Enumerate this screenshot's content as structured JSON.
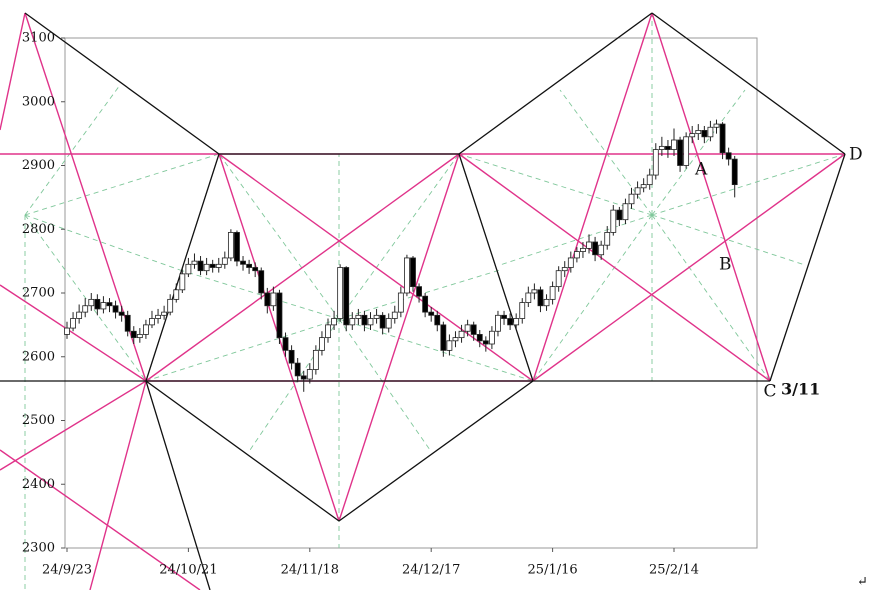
{
  "chart_data": {
    "type": "candlestick",
    "categories": [
      "24/9/23",
      null,
      null,
      null,
      null,
      null,
      null,
      null,
      null,
      null,
      null,
      null,
      null,
      null,
      null,
      null,
      null,
      null,
      null,
      null,
      "24/10/21",
      null,
      null,
      null,
      null,
      null,
      null,
      null,
      null,
      null,
      null,
      null,
      null,
      null,
      null,
      null,
      null,
      null,
      null,
      null,
      "24/11/18",
      null,
      null,
      null,
      null,
      null,
      null,
      null,
      null,
      null,
      null,
      null,
      null,
      null,
      null,
      null,
      null,
      null,
      null,
      null,
      "24/12/17",
      null,
      null,
      null,
      null,
      null,
      null,
      null,
      null,
      null,
      null,
      null,
      null,
      null,
      null,
      null,
      null,
      null,
      null,
      null,
      "25/1/16",
      null,
      null,
      null,
      null,
      null,
      null,
      null,
      null,
      null,
      null,
      null,
      null,
      null,
      null,
      null,
      null,
      null,
      null,
      null,
      "25/2/14",
      null,
      null,
      null,
      null,
      null,
      null,
      null,
      null,
      null,
      null
    ],
    "open": [
      2635,
      2645,
      2660,
      2670,
      2680,
      2690,
      2675,
      2685,
      2680,
      2670,
      2665,
      2640,
      2630,
      2635,
      2650,
      2660,
      2665,
      2670,
      2690,
      2705,
      2730,
      2745,
      2750,
      2735,
      2745,
      2740,
      2745,
      2755,
      2795,
      2750,
      2745,
      2740,
      2735,
      2700,
      2680,
      2700,
      2630,
      2610,
      2590,
      2570,
      2565,
      2580,
      2610,
      2630,
      2650,
      2660,
      2740,
      2650,
      2660,
      2665,
      2650,
      2660,
      2665,
      2645,
      2660,
      2670,
      2700,
      2755,
      2710,
      2695,
      2670,
      2665,
      2650,
      2610,
      2625,
      2630,
      2640,
      2650,
      2635,
      2625,
      2620,
      2640,
      2665,
      2660,
      2650,
      2660,
      2685,
      2700,
      2705,
      2680,
      2690,
      2710,
      2735,
      2740,
      2755,
      2765,
      2770,
      2780,
      2760,
      2775,
      2795,
      2830,
      2815,
      2840,
      2855,
      2865,
      2870,
      2885,
      2925,
      2930,
      2925,
      2940,
      2900,
      2945,
      2950,
      2955,
      2945,
      2960,
      2965,
      2920,
      2910
    ],
    "high": [
      2655,
      2670,
      2682,
      2692,
      2700,
      2698,
      2695,
      2692,
      2688,
      2680,
      2672,
      2648,
      2645,
      2658,
      2672,
      2675,
      2680,
      2698,
      2715,
      2740,
      2755,
      2762,
      2758,
      2755,
      2752,
      2755,
      2765,
      2800,
      2798,
      2758,
      2752,
      2748,
      2740,
      2708,
      2710,
      2705,
      2638,
      2618,
      2598,
      2578,
      2590,
      2618,
      2640,
      2660,
      2672,
      2745,
      2742,
      2670,
      2675,
      2672,
      2670,
      2675,
      2670,
      2668,
      2680,
      2710,
      2760,
      2758,
      2715,
      2700,
      2678,
      2672,
      2655,
      2635,
      2640,
      2650,
      2658,
      2655,
      2642,
      2632,
      2648,
      2672,
      2672,
      2668,
      2668,
      2692,
      2710,
      2715,
      2710,
      2698,
      2718,
      2742,
      2750,
      2765,
      2772,
      2780,
      2792,
      2788,
      2782,
      2805,
      2838,
      2835,
      2848,
      2865,
      2875,
      2880,
      2895,
      2935,
      2945,
      2940,
      2958,
      2945,
      2952,
      2962,
      2965,
      2962,
      2970,
      2972,
      2968,
      2928,
      2915
    ],
    "low": [
      2628,
      2640,
      2652,
      2662,
      2672,
      2665,
      2668,
      2670,
      2660,
      2655,
      2632,
      2620,
      2622,
      2628,
      2645,
      2652,
      2658,
      2665,
      2685,
      2700,
      2725,
      2738,
      2728,
      2728,
      2732,
      2732,
      2738,
      2750,
      2742,
      2735,
      2730,
      2725,
      2690,
      2668,
      2672,
      2620,
      2600,
      2580,
      2560,
      2545,
      2558,
      2572,
      2602,
      2622,
      2642,
      2655,
      2640,
      2642,
      2650,
      2640,
      2642,
      2652,
      2635,
      2638,
      2652,
      2662,
      2695,
      2702,
      2685,
      2662,
      2655,
      2640,
      2600,
      2602,
      2615,
      2622,
      2632,
      2625,
      2615,
      2608,
      2612,
      2632,
      2650,
      2642,
      2642,
      2652,
      2678,
      2690,
      2670,
      2672,
      2682,
      2702,
      2725,
      2732,
      2748,
      2755,
      2762,
      2750,
      2752,
      2768,
      2790,
      2805,
      2808,
      2832,
      2848,
      2858,
      2862,
      2878,
      2915,
      2912,
      2915,
      2890,
      2895,
      2935,
      2940,
      2935,
      2938,
      2950,
      2910,
      2900,
      2850
    ],
    "close": [
      2645,
      2660,
      2670,
      2680,
      2690,
      2675,
      2685,
      2680,
      2670,
      2665,
      2640,
      2630,
      2635,
      2650,
      2660,
      2665,
      2670,
      2690,
      2705,
      2730,
      2745,
      2750,
      2735,
      2745,
      2740,
      2745,
      2755,
      2795,
      2750,
      2745,
      2740,
      2735,
      2700,
      2680,
      2700,
      2630,
      2610,
      2590,
      2570,
      2565,
      2580,
      2610,
      2630,
      2650,
      2660,
      2740,
      2650,
      2660,
      2665,
      2650,
      2660,
      2665,
      2645,
      2660,
      2670,
      2700,
      2755,
      2710,
      2695,
      2670,
      2665,
      2650,
      2610,
      2625,
      2630,
      2640,
      2650,
      2635,
      2625,
      2620,
      2640,
      2665,
      2660,
      2650,
      2660,
      2685,
      2700,
      2705,
      2680,
      2690,
      2710,
      2735,
      2740,
      2755,
      2765,
      2770,
      2780,
      2760,
      2775,
      2795,
      2830,
      2815,
      2840,
      2855,
      2865,
      2870,
      2885,
      2925,
      2930,
      2925,
      2940,
      2900,
      2945,
      2950,
      2955,
      2945,
      2960,
      2965,
      2920,
      2910,
      2870
    ],
    "ylim": [
      2300,
      3100
    ],
    "yticks": [
      2300,
      2400,
      2500,
      2600,
      2700,
      2800,
      2900,
      3000,
      3100
    ],
    "up_color": "#ffffff",
    "down_color": "#000000",
    "annotations": [
      "A",
      "B",
      "C",
      "3/11",
      "D",
      "↵"
    ]
  }
}
